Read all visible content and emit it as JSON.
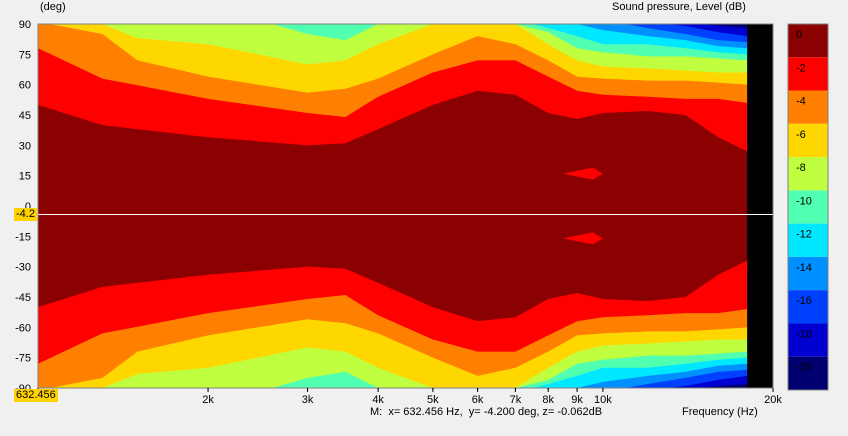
{
  "header": {
    "y_unit": "(deg)",
    "z_title": "Sound pressure, Level  (dB)"
  },
  "chart_data": {
    "type": "heatmap",
    "title": "Sound pressure, Level  (dB)",
    "ylabel": "(deg)",
    "xlabel": "Frequency  (Hz)",
    "x_scale": "log",
    "xlim": [
      1000,
      20000
    ],
    "ylim": [
      -90,
      90
    ],
    "x_ticks": [
      {
        "value": 2000,
        "label": "2k"
      },
      {
        "value": 3000,
        "label": "3k"
      },
      {
        "value": 4000,
        "label": "4k"
      },
      {
        "value": 5000,
        "label": "5k"
      },
      {
        "value": 6000,
        "label": "6k"
      },
      {
        "value": 7000,
        "label": "7k"
      },
      {
        "value": 8000,
        "label": "8k"
      },
      {
        "value": 9000,
        "label": "9k"
      },
      {
        "value": 10000,
        "label": "10k"
      },
      {
        "value": 20000,
        "label": "20k"
      }
    ],
    "y_ticks": [
      90,
      75,
      60,
      45,
      30,
      15,
      0,
      -15,
      -30,
      -45,
      -60,
      -75,
      -90
    ],
    "colorbar": {
      "levels": [
        0,
        -2,
        -4,
        -6,
        -8,
        -10,
        -12,
        -14,
        -16,
        -18,
        -20
      ],
      "colors": [
        "#8b0000",
        "#ff0000",
        "#ff7f00",
        "#ffd700",
        "#c0ff40",
        "#50ffb0",
        "#00e8ff",
        "#0090ff",
        "#0040ff",
        "#0000d0",
        "#000070"
      ]
    },
    "contours": [
      {
        "level": -2,
        "points": [
          [
            1000,
            50
          ],
          [
            1300,
            40
          ],
          [
            2000,
            34
          ],
          [
            3000,
            30
          ],
          [
            3500,
            31
          ],
          [
            4000,
            38
          ],
          [
            5000,
            50
          ],
          [
            6000,
            57
          ],
          [
            7000,
            55
          ],
          [
            8000,
            46
          ],
          [
            9000,
            43
          ],
          [
            10000,
            46
          ],
          [
            12000,
            47
          ],
          [
            14000,
            45
          ],
          [
            16000,
            34
          ],
          [
            18000,
            27
          ]
        ]
      },
      {
        "level": -4,
        "points": [
          [
            1000,
            78
          ],
          [
            1300,
            63
          ],
          [
            2000,
            53
          ],
          [
            3000,
            46
          ],
          [
            3500,
            44
          ],
          [
            4000,
            54
          ],
          [
            5000,
            66
          ],
          [
            6000,
            72
          ],
          [
            7000,
            72
          ],
          [
            8000,
            64
          ],
          [
            9000,
            57
          ],
          [
            10000,
            55
          ],
          [
            12000,
            54
          ],
          [
            14000,
            53
          ],
          [
            16000,
            53
          ],
          [
            18000,
            51
          ]
        ]
      },
      {
        "level": -6,
        "points": [
          [
            1050,
            90
          ],
          [
            1300,
            85
          ],
          [
            1500,
            72
          ],
          [
            2000,
            64
          ],
          [
            3000,
            56
          ],
          [
            3500,
            58
          ],
          [
            4000,
            63
          ],
          [
            5000,
            75
          ],
          [
            6000,
            84
          ],
          [
            7000,
            80
          ],
          [
            8000,
            72
          ],
          [
            9000,
            64
          ],
          [
            10000,
            63
          ],
          [
            12000,
            62
          ],
          [
            14000,
            62
          ],
          [
            16000,
            61
          ],
          [
            18000,
            60
          ]
        ]
      },
      {
        "level": -8,
        "points": [
          [
            1300,
            90
          ],
          [
            1500,
            83
          ],
          [
            2000,
            80
          ],
          [
            3000,
            70
          ],
          [
            3500,
            72
          ],
          [
            4000,
            80
          ],
          [
            5000,
            90
          ],
          [
            7000,
            90
          ],
          [
            8000,
            80
          ],
          [
            9000,
            72
          ],
          [
            10000,
            69
          ],
          [
            12000,
            68
          ],
          [
            14000,
            67
          ],
          [
            16000,
            66
          ],
          [
            18000,
            66
          ]
        ]
      },
      {
        "level": -10,
        "points": [
          [
            2600,
            90
          ],
          [
            3000,
            85
          ],
          [
            3500,
            82
          ],
          [
            4000,
            90
          ],
          [
            7000,
            90
          ],
          [
            8000,
            86
          ],
          [
            9000,
            78
          ],
          [
            10000,
            76
          ],
          [
            12000,
            74
          ],
          [
            14000,
            74
          ],
          [
            16000,
            73
          ],
          [
            18000,
            72
          ]
        ]
      },
      {
        "level": -12,
        "points": [
          [
            7500,
            90
          ],
          [
            8000,
            88
          ],
          [
            9000,
            84
          ],
          [
            10000,
            80
          ],
          [
            12000,
            80
          ],
          [
            14000,
            78
          ],
          [
            16000,
            76
          ],
          [
            18000,
            75
          ]
        ]
      },
      {
        "level": -14,
        "points": [
          [
            9000,
            90
          ],
          [
            10000,
            87
          ],
          [
            12000,
            84
          ],
          [
            14000,
            82
          ],
          [
            16000,
            79
          ],
          [
            18000,
            78
          ]
        ]
      },
      {
        "level": -16,
        "points": [
          [
            11000,
            90
          ],
          [
            12000,
            88
          ],
          [
            14000,
            85
          ],
          [
            16000,
            82
          ],
          [
            18000,
            81
          ]
        ]
      },
      {
        "level": -18,
        "points": [
          [
            13000,
            90
          ],
          [
            14000,
            89
          ],
          [
            16000,
            86
          ],
          [
            18000,
            84
          ]
        ]
      },
      {
        "level": -20,
        "points": [
          [
            15000,
            90
          ],
          [
            16000,
            89
          ],
          [
            18000,
            88
          ]
        ]
      }
    ],
    "islands": [
      {
        "level": -2,
        "y": 16,
        "x_start": 8500,
        "x_end": 10000
      },
      {
        "level": -2,
        "y": -16,
        "x_start": 8500,
        "x_end": 10000
      }
    ],
    "masked_from_hz": 18000
  },
  "cursor": {
    "x_hz": 632.456,
    "y_deg": -4.2,
    "x_label": "632.456",
    "y_label": "-4.2"
  },
  "status": {
    "text": "M:  x= 632.456 Hz,  y= -4.200 deg, z= -0.062dB",
    "frequency_label": "Frequency  (Hz)"
  }
}
